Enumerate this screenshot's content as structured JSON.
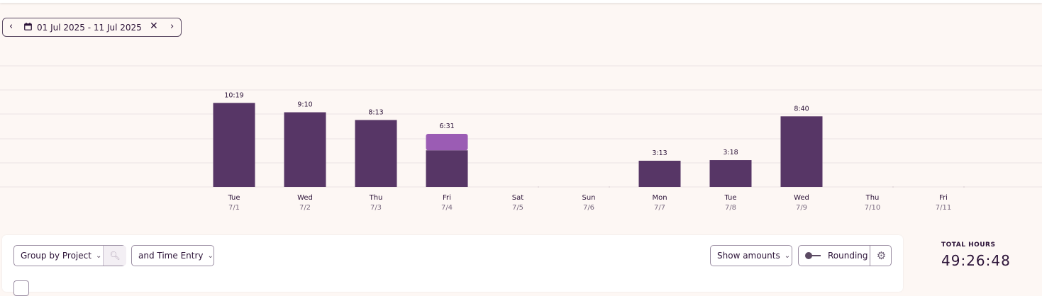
{
  "date_range": {
    "text": "01 Jul 2025 - 11 Jul 2025",
    "prev_icon": "chevron-left-icon",
    "next_icon": "chevron-right-icon",
    "clear_icon": "close-icon",
    "calendar_icon": "calendar-icon"
  },
  "toolbar": {
    "group_by_label": "Group by Project",
    "search_icon": "search-icon",
    "time_entry_label": "and Time Entry",
    "show_amounts_label": "Show amounts",
    "rounding_label": "Rounding",
    "settings_icon": "gear-icon"
  },
  "totals": {
    "label": "TOTAL HOURS",
    "value": "49:26:48"
  },
  "colors": {
    "bar": "#573666",
    "bar_highlight": "#9b5cb4",
    "grid": "#ece3e3"
  },
  "chart_data": {
    "type": "bar",
    "stacked": true,
    "categories": [
      {
        "day": "Tue",
        "date": "7/1"
      },
      {
        "day": "Wed",
        "date": "7/2"
      },
      {
        "day": "Thu",
        "date": "7/3"
      },
      {
        "day": "Fri",
        "date": "7/4"
      },
      {
        "day": "Sat",
        "date": "7/5"
      },
      {
        "day": "Sun",
        "date": "7/6"
      },
      {
        "day": "Mon",
        "date": "7/7"
      },
      {
        "day": "Tue",
        "date": "7/8"
      },
      {
        "day": "Wed",
        "date": "7/9"
      },
      {
        "day": "Thu",
        "date": "7/10"
      },
      {
        "day": "Fri",
        "date": "7/11"
      }
    ],
    "labels": [
      "10:19",
      "9:10",
      "8:13",
      "6:31",
      "",
      "",
      "3:13",
      "3:18",
      "8:40",
      "",
      ""
    ],
    "series": [
      {
        "values": [
          10.32,
          9.17,
          8.22,
          4.5,
          0,
          0,
          3.22,
          3.3,
          8.67,
          0,
          0
        ]
      },
      {
        "values": [
          0,
          0,
          0,
          2.02,
          0,
          0,
          0,
          0,
          0,
          0,
          0
        ]
      }
    ],
    "ylim": [
      0,
      14
    ],
    "grid": true,
    "legend": "none"
  }
}
